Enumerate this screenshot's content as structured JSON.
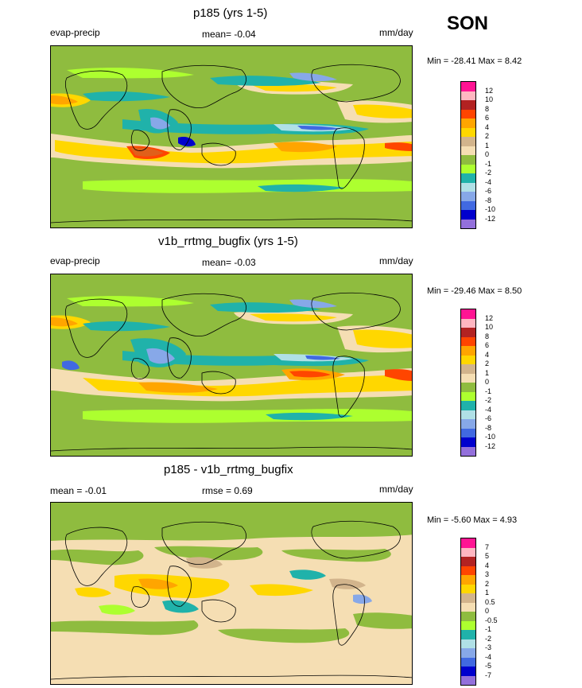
{
  "season": "SON",
  "panels": [
    {
      "title": "p185 (yrs 1-5)",
      "left_label": "evap-precip",
      "mean_text": "mean=  -0.04",
      "units": "mm/day",
      "minmax": "Min = -28.41 Max =   8.42"
    },
    {
      "title": "v1b_rrtmg_bugfix (yrs 1-5)",
      "left_label": "evap-precip",
      "mean_text": "mean=  -0.03",
      "units": "mm/day",
      "minmax": "Min = -29.46 Max =   8.50"
    },
    {
      "title": "p185 - v1b_rrtmg_bugfix",
      "left_label": "mean =  -0.01",
      "mean_text": "rmse =   0.69",
      "units": "mm/day",
      "minmax": "Min =  -5.60 Max =   4.93"
    }
  ],
  "colorbar_main": {
    "labels": [
      "12",
      "10",
      "8",
      "6",
      "4",
      "2",
      "1",
      "0",
      "-1",
      "-2",
      "-4",
      "-6",
      "-8",
      "-10",
      "-12"
    ],
    "colors": [
      "#ff1493",
      "#ffb6c1",
      "#b22222",
      "#ff4500",
      "#ffa500",
      "#ffd700",
      "#d2b48c",
      "#f5deb3",
      "#8fbc3f",
      "#adff2f",
      "#20b2aa",
      "#b0e0e6",
      "#87a8e8",
      "#4169e1",
      "#0000cd",
      "#9370db"
    ]
  },
  "colorbar_diff": {
    "labels": [
      "7",
      "5",
      "4",
      "3",
      "2",
      "1",
      "0.5",
      "0",
      "-0.5",
      "-1",
      "-2",
      "-3",
      "-4",
      "-5",
      "-7"
    ],
    "colors": [
      "#ff1493",
      "#ffb6c1",
      "#b22222",
      "#ff4500",
      "#ffa500",
      "#ffd700",
      "#d2b48c",
      "#f5deb3",
      "#8fbc3f",
      "#adff2f",
      "#20b2aa",
      "#b0e0e6",
      "#87a8e8",
      "#4169e1",
      "#0000cd",
      "#9370db"
    ]
  }
}
